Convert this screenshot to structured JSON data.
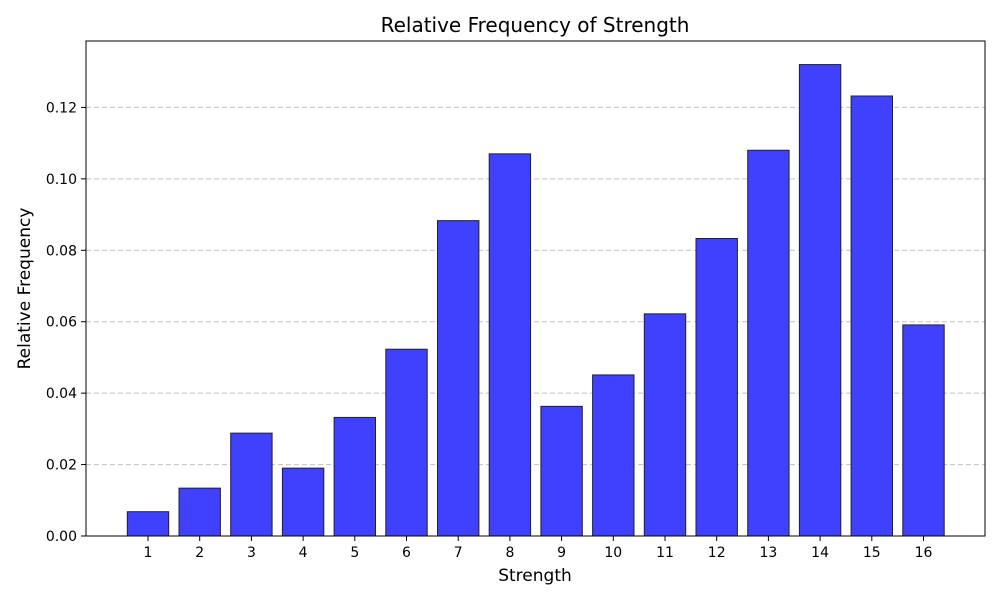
{
  "chart_data": {
    "type": "bar",
    "title": "Relative Frequency of Strength",
    "xlabel": "Strength",
    "ylabel": "Relative Frequency",
    "categories": [
      "1",
      "2",
      "3",
      "4",
      "5",
      "6",
      "7",
      "8",
      "9",
      "10",
      "11",
      "12",
      "13",
      "14",
      "15",
      "16"
    ],
    "values": [
      0.0068,
      0.0134,
      0.0288,
      0.019,
      0.0332,
      0.0523,
      0.0883,
      0.107,
      0.0363,
      0.0451,
      0.0622,
      0.0833,
      0.108,
      0.132,
      0.1232,
      0.0591
    ],
    "ylim": [
      0,
      0.1386
    ],
    "yticks": [
      0.0,
      0.02,
      0.04,
      0.06,
      0.08,
      0.1,
      0.12
    ],
    "ytick_labels": [
      "0.00",
      "0.02",
      "0.04",
      "0.06",
      "0.08",
      "0.10",
      "0.12"
    ],
    "grid": "y-dashed",
    "bar_color": "#4040ff",
    "bar_edge_color": "#222222",
    "grid_color": "#c0c0c0"
  }
}
